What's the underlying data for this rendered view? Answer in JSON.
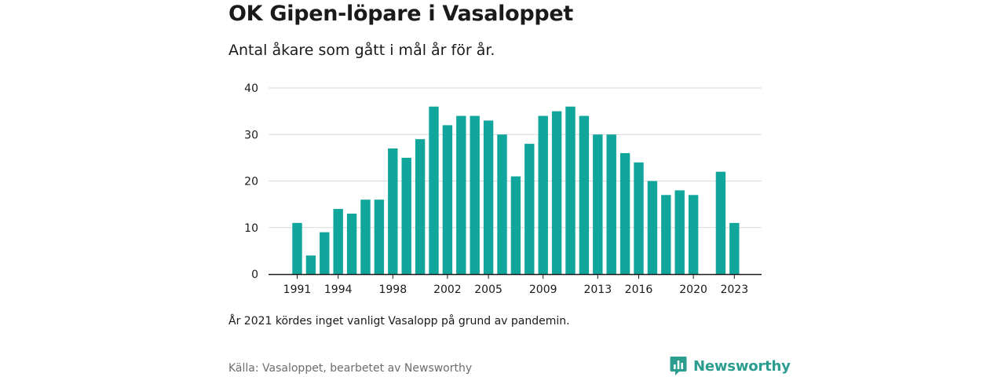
{
  "title": "OK Gipen-löpare i Vasaloppet",
  "subtitle": "Antal åkare som gått i mål år för år.",
  "note": "År 2021 kördes inget vanligt Vasalopp på grund av pandemin.",
  "source": "Källa: Vasaloppet, bearbetet av Newsworthy",
  "brand": {
    "name": "Newsworthy",
    "icon": "newsworthy-logo-icon"
  },
  "colors": {
    "bar": "#11a69c",
    "grid": "#d9d9d9",
    "axis": "#1a1a1a",
    "brand": "#2a9d8f"
  },
  "chart_data": {
    "type": "bar",
    "x": [
      1991,
      1992,
      1993,
      1994,
      1995,
      1996,
      1997,
      1998,
      1999,
      2000,
      2001,
      2002,
      2003,
      2004,
      2005,
      2006,
      2007,
      2008,
      2009,
      2010,
      2011,
      2012,
      2013,
      2014,
      2015,
      2016,
      2017,
      2018,
      2019,
      2020,
      2021,
      2022,
      2023
    ],
    "values": [
      11,
      4,
      9,
      14,
      13,
      16,
      16,
      27,
      25,
      29,
      36,
      32,
      34,
      34,
      33,
      30,
      21,
      28,
      34,
      35,
      36,
      34,
      30,
      30,
      26,
      24,
      20,
      17,
      18,
      17,
      null,
      22,
      11
    ],
    "x_tick_labels": [
      "1991",
      "1994",
      "1998",
      "2002",
      "2005",
      "2009",
      "2013",
      "2016",
      "2020",
      "2023"
    ],
    "y_ticks": [
      0,
      10,
      20,
      30,
      40
    ],
    "ylim": [
      0,
      40
    ],
    "grid": true,
    "legend": "none"
  }
}
